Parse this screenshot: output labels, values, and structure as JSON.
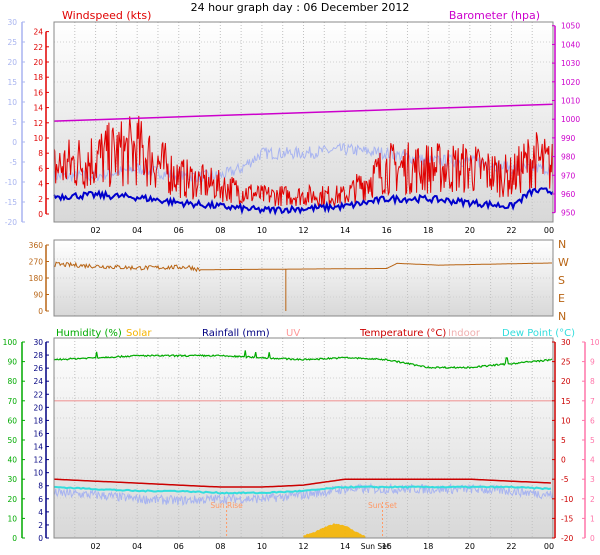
{
  "title": "24 hour graph day : 06 December 2012",
  "colors": {
    "wind": "#e00000",
    "gust_bg": "#a8b4f0",
    "baro": "#cc00cc",
    "dir": "#b86414",
    "humidity": "#00aa00",
    "solar": "#f5b400",
    "rain": "#000080",
    "uv": "#ff9999",
    "temp": "#cc0000",
    "indoor": "#f0b0b0",
    "dew": "#33dddd",
    "dark_blue": "#0000cc",
    "axis_pink": "#ff77aa"
  },
  "chart_data": [
    {
      "type": "line",
      "title": "",
      "legend": [
        "Windspeed (kts)",
        "Barometer (hpa)"
      ],
      "x_labels": [
        "02",
        "04",
        "06",
        "08",
        "10",
        "12",
        "14",
        "16",
        "18",
        "20",
        "22",
        "00"
      ],
      "left_axis_ticks": [
        "24",
        "22",
        "20",
        "18",
        "16",
        "14",
        "12",
        "10",
        "8",
        "6",
        "4",
        "2",
        "0"
      ],
      "outer_left_axis_ticks": [
        "30",
        "25",
        "20",
        "15",
        "10",
        "5",
        "0",
        "-5",
        "-10",
        "-15",
        "-20"
      ],
      "right_axis_ticks": [
        "1050",
        "1040",
        "1030",
        "1020",
        "1010",
        "1000",
        "990",
        "980",
        "970",
        "960",
        "950"
      ],
      "ylim_wind": [
        0,
        25
      ],
      "ylim_baro": [
        945,
        1052
      ],
      "series": [
        {
          "name": "Barometer (hpa)",
          "axis": "right",
          "x": [
            0,
            24
          ],
          "values": [
            999,
            1008
          ]
        },
        {
          "name": "Windspeed (kts)",
          "axis": "left",
          "x": [
            0,
            2,
            4,
            6,
            8,
            10,
            12,
            14,
            16,
            18,
            20,
            22,
            23,
            24
          ],
          "values": [
            5,
            6,
            7,
            4,
            3,
            2,
            2,
            2,
            5,
            5,
            5,
            4,
            6,
            5
          ]
        },
        {
          "name": "",
          "axis": "left",
          "x": [
            0,
            2,
            4,
            6,
            8,
            10,
            12,
            14,
            16,
            18,
            20,
            22,
            23,
            24
          ],
          "values": [
            2.3,
            2.5,
            2.2,
            1.5,
            1,
            0.5,
            0.7,
            1,
            2,
            2,
            1.5,
            1,
            3,
            3
          ]
        }
      ]
    },
    {
      "type": "line",
      "legend_vertical": "NWSEN",
      "left_axis_ticks": [
        "360",
        "270",
        "180",
        "90",
        "0"
      ],
      "ylim": [
        0,
        360
      ],
      "series": [
        {
          "name": "",
          "x": [
            0,
            2,
            4,
            6.5,
            7,
            16,
            16.5,
            18.5,
            24
          ],
          "values": [
            255,
            245,
            235,
            240,
            225,
            232,
            260,
            250,
            262
          ]
        }
      ]
    },
    {
      "type": "line",
      "legend": [
        "Humidity (%)",
        "Solar",
        "Rainfall (mm)",
        "UV",
        "Temperature (°C)",
        "Indoor",
        "Dew Point (°C)"
      ],
      "annotations": [
        "Sun Rise",
        "Sun Set"
      ],
      "x_labels": [
        "02",
        "04",
        "06",
        "08",
        "10",
        "12",
        "14",
        "16",
        "18",
        "20",
        "22",
        "00"
      ],
      "x_special_labels": [
        "Sun Set"
      ],
      "humidity_ticks": [
        "100",
        "90",
        "80",
        "70",
        "60",
        "50",
        "40",
        "30",
        "20",
        "10",
        "0"
      ],
      "rain_ticks": [
        "30",
        "28",
        "26",
        "24",
        "22",
        "20",
        "18",
        "16",
        "14",
        "12",
        "10",
        "8",
        "6",
        "4",
        "2",
        "0"
      ],
      "temp_ticks": [
        "30",
        "25",
        "20",
        "15",
        "10",
        "5",
        "0",
        "-5",
        "-10",
        "-15",
        "-20"
      ],
      "uv_ticks": [
        "10",
        "9",
        "8",
        "7",
        "6",
        "5",
        "4",
        "3",
        "2",
        "1",
        "0"
      ],
      "series": [
        {
          "name": "Humidity (%)",
          "x": [
            0,
            2,
            4,
            6,
            8,
            10,
            12,
            14,
            16,
            18,
            20,
            22,
            24
          ],
          "values": [
            91,
            92,
            93,
            93,
            93,
            92,
            91,
            92,
            91,
            87,
            87,
            89,
            91
          ]
        },
        {
          "name": "Temperature (°C)",
          "x": [
            0,
            2,
            4,
            6,
            8,
            10,
            12,
            14,
            16,
            18,
            20,
            22,
            24
          ],
          "values": [
            -5,
            -5.5,
            -6,
            -6.5,
            -7,
            -7,
            -6.5,
            -5,
            -5,
            -5,
            -5,
            -5.5,
            -6
          ]
        },
        {
          "name": "Dew Point (°C)",
          "x": [
            0,
            2,
            4,
            6,
            8,
            10,
            12,
            14,
            16,
            18,
            20,
            22,
            24
          ],
          "values": [
            -7,
            -7.5,
            -8,
            -8,
            -8.5,
            -8.5,
            -8,
            -7,
            -7,
            -7,
            -7,
            -7,
            -7.5
          ]
        },
        {
          "name": "Indoor",
          "x": [
            0,
            24
          ],
          "values": [
            15,
            15
          ]
        },
        {
          "name": "Solar",
          "x": [
            12,
            12.5,
            13,
            13.5,
            14,
            14.5,
            15
          ],
          "values": [
            2,
            5,
            10,
            14,
            12,
            6,
            1
          ]
        }
      ]
    }
  ]
}
